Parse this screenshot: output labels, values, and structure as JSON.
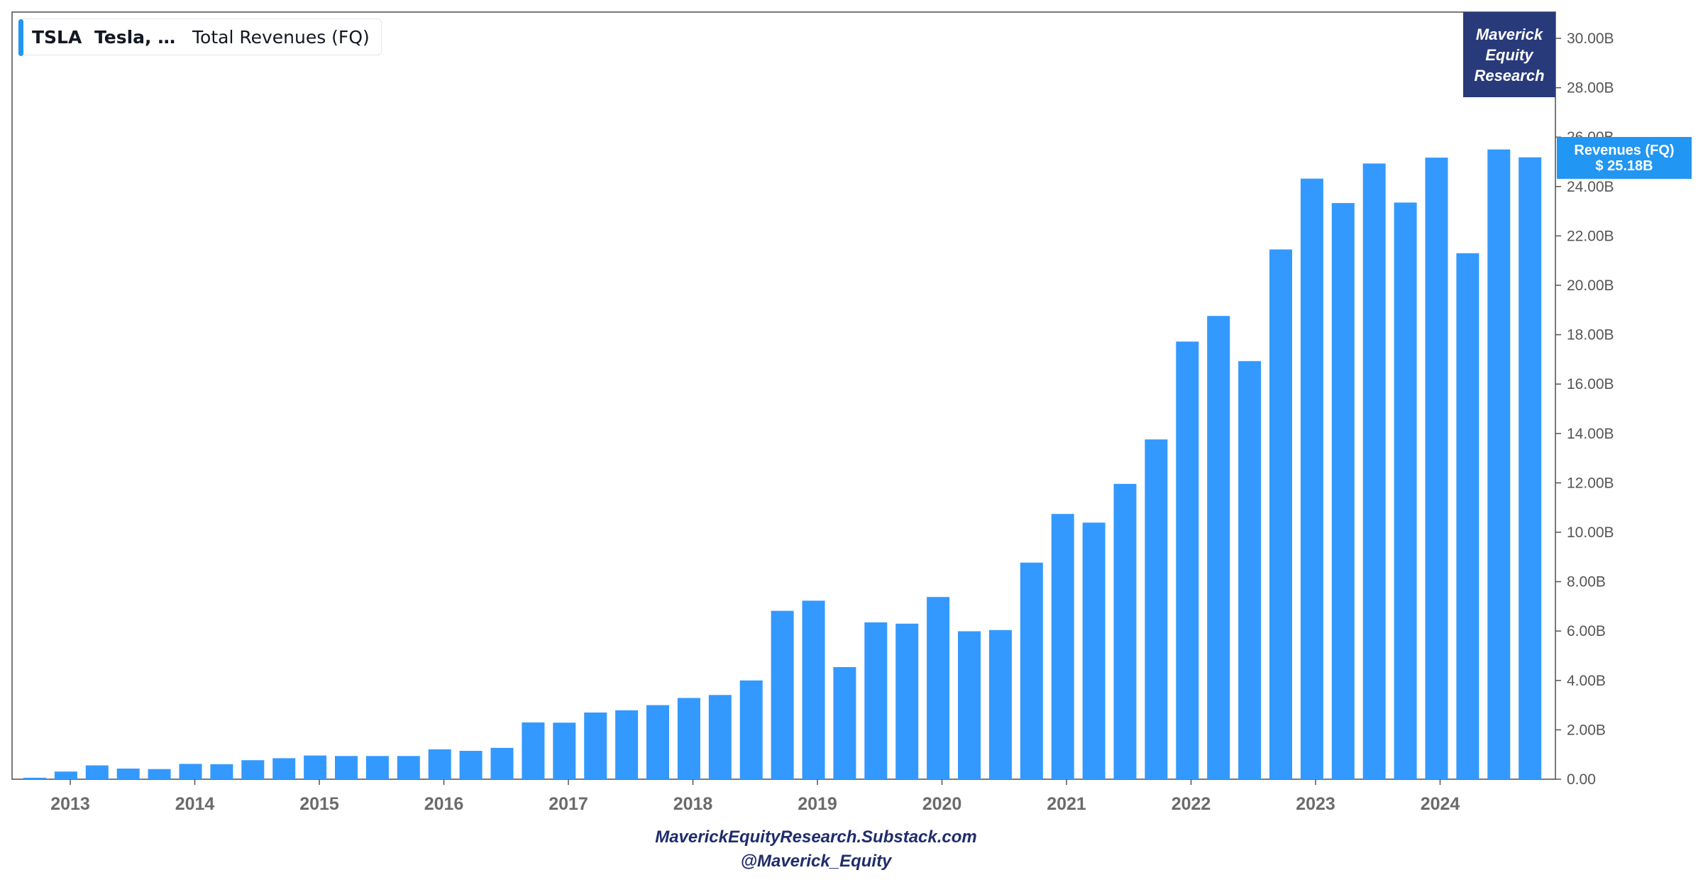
{
  "header": {
    "ticker": "TSLA",
    "company": "Tesla, Inc.",
    "metric": "Total Revenues (FQ)",
    "accent_color": "#2196f3"
  },
  "brand": {
    "line1": "Maverick",
    "line2": "Equity",
    "line3": "Research",
    "color": "#283a7a"
  },
  "last_value_tag": {
    "label": "Revenues (FQ)",
    "value": "$ 25.18B"
  },
  "footer": {
    "line1": "MaverickEquityResearch.Substack.com",
    "line2": "@Maverick_Equity"
  },
  "chart_data": {
    "type": "bar",
    "title": "",
    "xlabel": "",
    "ylabel": "",
    "unit": "USD billions",
    "bar_color": "#3399ff",
    "ylim": [
      0,
      31
    ],
    "y_axis_position": "right",
    "y_ticks": [
      0,
      2,
      4,
      6,
      8,
      10,
      12,
      14,
      16,
      18,
      20,
      22,
      24,
      26,
      28,
      30
    ],
    "y_tick_labels": [
      "0.00",
      "2.00B",
      "4.00B",
      "6.00B",
      "8.00B",
      "10.00B",
      "12.00B",
      "14.00B",
      "16.00B",
      "18.00B",
      "20.00B",
      "22.00B",
      "24.00B",
      "26.00B",
      "28.00B",
      "30.00B"
    ],
    "x_tick_labels": [
      "2013",
      "2014",
      "2015",
      "2016",
      "2017",
      "2018",
      "2019",
      "2020",
      "2021",
      "2022",
      "2023",
      "2024"
    ],
    "grid": false,
    "values": [
      0.06,
      0.31,
      0.56,
      0.43,
      0.41,
      0.62,
      0.61,
      0.77,
      0.85,
      0.96,
      0.94,
      0.94,
      0.94,
      1.21,
      1.15,
      1.27,
      2.3,
      2.29,
      2.7,
      2.79,
      3.0,
      3.29,
      3.41,
      4.0,
      6.82,
      7.23,
      4.54,
      6.35,
      6.3,
      7.38,
      5.99,
      6.04,
      8.77,
      10.74,
      10.39,
      11.96,
      13.76,
      17.72,
      18.76,
      16.93,
      21.45,
      24.32,
      23.33,
      24.93,
      23.35,
      25.17,
      21.3,
      25.5,
      25.18
    ]
  }
}
